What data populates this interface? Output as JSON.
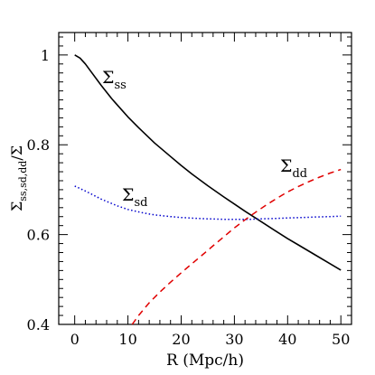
{
  "chart_data": {
    "type": "line",
    "xlabel": "R (Mpc/h)",
    "ylabel": {
      "main": "Σ",
      "sub": "ss,sd,dd",
      "tail": "/Σ"
    },
    "xlim": [
      -3,
      52
    ],
    "ylim": [
      0.4,
      1.05
    ],
    "xticks": [
      0,
      10,
      20,
      30,
      40,
      50
    ],
    "xtick_labels": [
      "0",
      "10",
      "20",
      "30",
      "40",
      "50"
    ],
    "yticks": [
      0.4,
      0.6,
      0.8,
      1.0
    ],
    "ytick_labels": [
      "0.4",
      "0.6",
      "0.8",
      "1"
    ],
    "grid": false,
    "series": [
      {
        "name": {
          "main": "Σ",
          "sub": "ss"
        },
        "color": "#000000",
        "style": "solid",
        "x": [
          0,
          1,
          2,
          3,
          5,
          7,
          10,
          12,
          15,
          18,
          20,
          22,
          25,
          28,
          30,
          32,
          35,
          38,
          40,
          42,
          45,
          48,
          50
        ],
        "y": [
          1.0,
          0.993,
          0.98,
          0.964,
          0.932,
          0.902,
          0.862,
          0.838,
          0.804,
          0.774,
          0.754,
          0.735,
          0.709,
          0.684,
          0.668,
          0.652,
          0.629,
          0.606,
          0.591,
          0.577,
          0.556,
          0.535,
          0.521
        ]
      },
      {
        "name": {
          "main": "Σ",
          "sub": "sd"
        },
        "color": "#0000cc",
        "style": "dotted",
        "x": [
          0,
          2,
          5,
          8,
          10,
          13,
          15,
          18,
          20,
          23,
          25,
          28,
          30,
          33,
          35,
          38,
          40,
          43,
          45,
          48,
          50
        ],
        "y": [
          0.708,
          0.697,
          0.679,
          0.664,
          0.656,
          0.648,
          0.644,
          0.64,
          0.638,
          0.636,
          0.635,
          0.634,
          0.634,
          0.634,
          0.635,
          0.636,
          0.637,
          0.638,
          0.639,
          0.64,
          0.641
        ]
      },
      {
        "name": {
          "main": "Σ",
          "sub": "dd"
        },
        "color": "#e00000",
        "style": "dashed",
        "x": [
          10.8,
          12,
          14,
          16,
          18,
          20,
          22,
          24,
          26,
          28,
          30,
          32,
          34,
          36,
          38,
          40,
          42,
          44,
          46,
          48,
          50
        ],
        "y": [
          0.4,
          0.42,
          0.448,
          0.472,
          0.494,
          0.515,
          0.535,
          0.555,
          0.575,
          0.595,
          0.615,
          0.633,
          0.65,
          0.666,
          0.681,
          0.695,
          0.707,
          0.718,
          0.728,
          0.737,
          0.745
        ]
      }
    ]
  }
}
